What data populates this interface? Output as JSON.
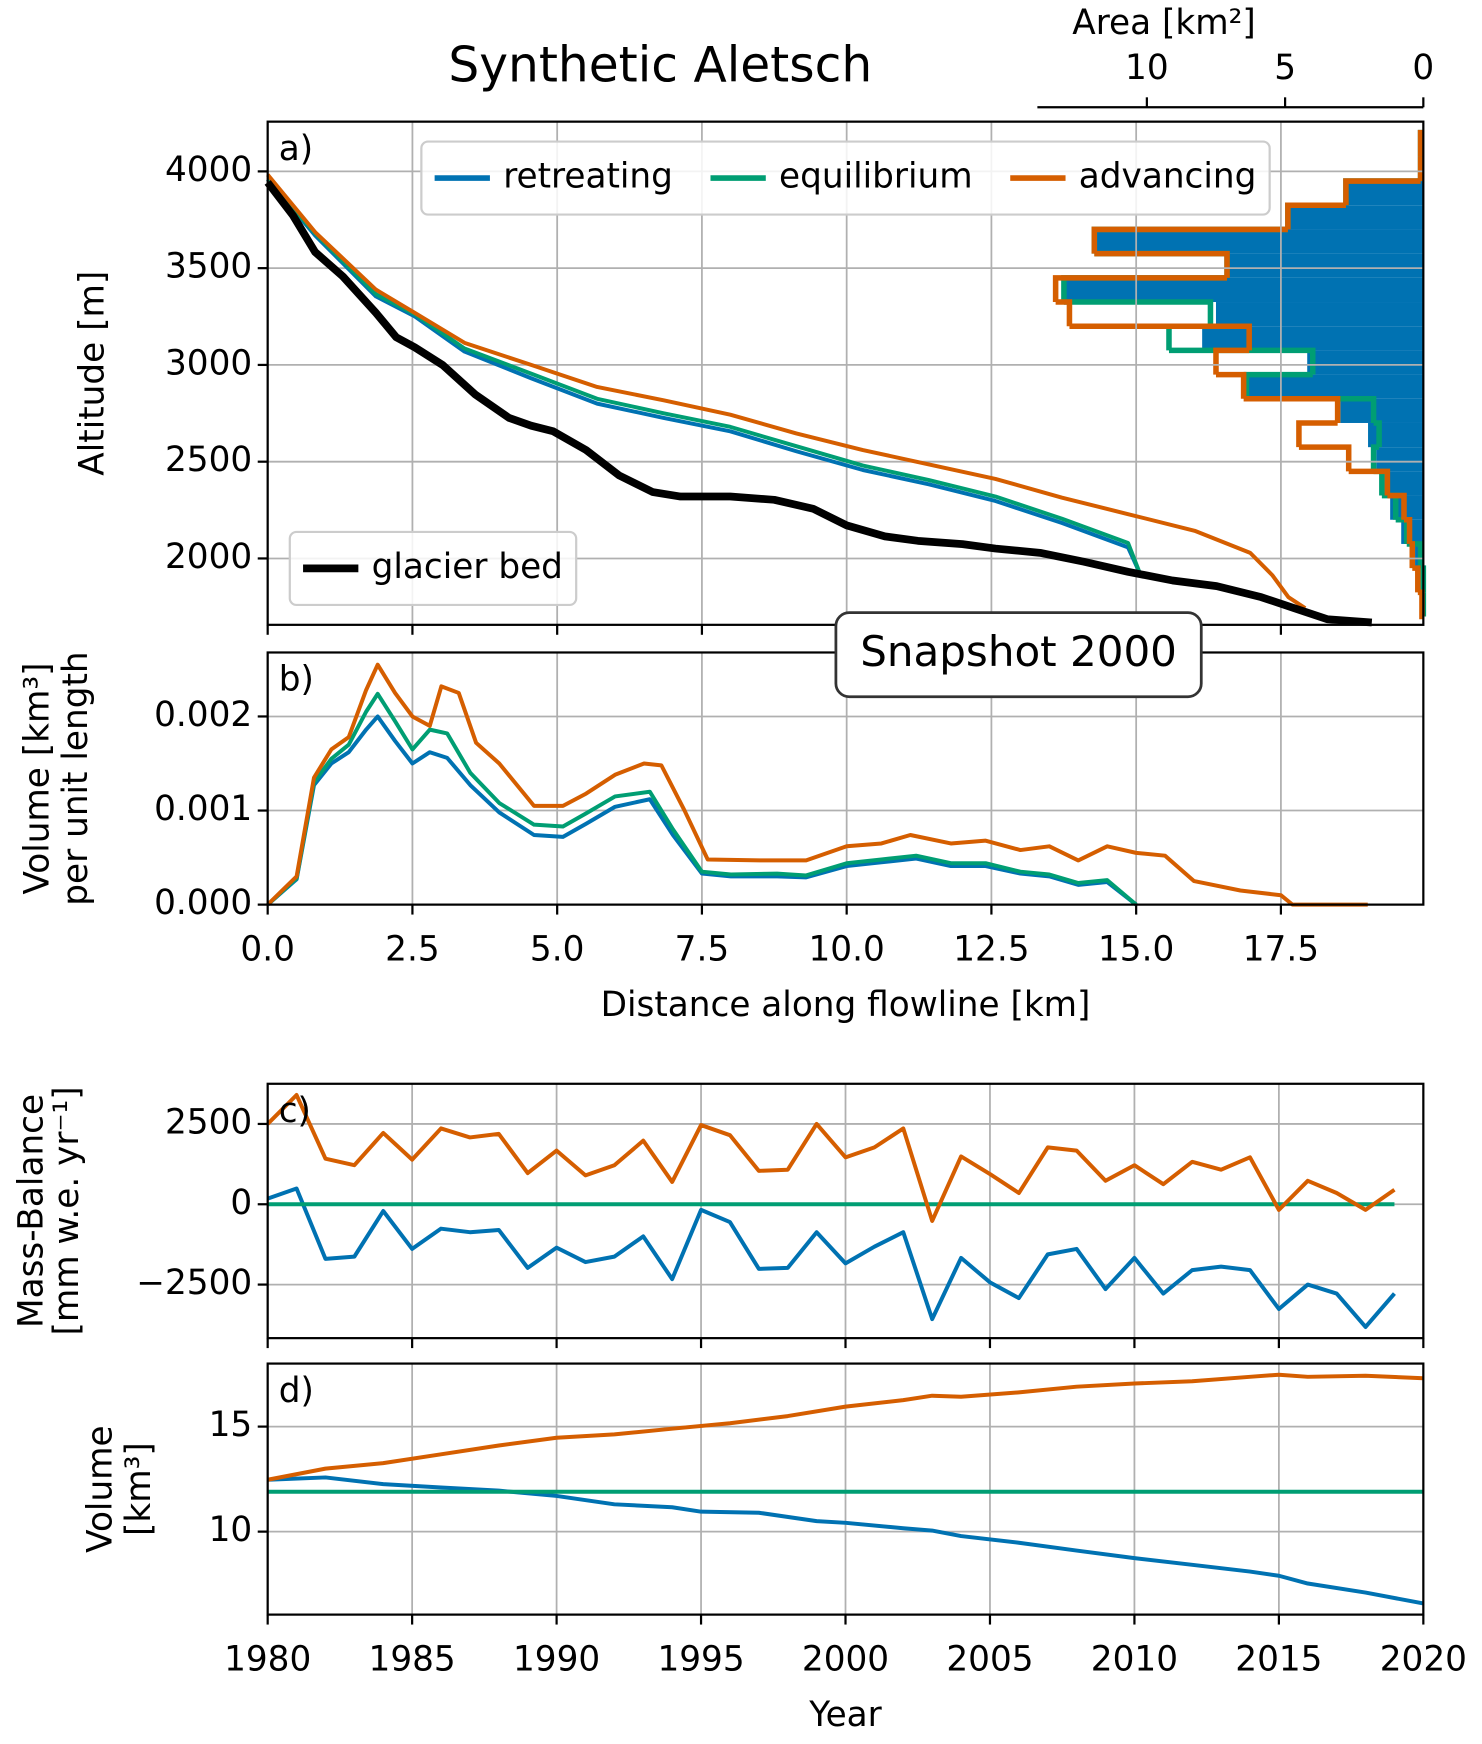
{
  "chart_data": [
    {
      "type": "line",
      "title": "Synthetic Aletsch",
      "panel_label": "a)",
      "ylabel": [
        "Altitude [m]"
      ],
      "xlim": [
        0,
        19.96
      ],
      "ylim": [
        1657,
        4257
      ],
      "xticks": [
        0,
        2.5,
        5,
        7.5,
        10,
        12.5,
        15,
        17.5
      ],
      "xtick_labels": false,
      "yticks": [
        2000,
        2500,
        3000,
        3500,
        4000
      ],
      "grid": true,
      "series": [
        {
          "name": "retreating",
          "color": "#0072b2",
          "legend": "upper center",
          "x": [
            0,
            0.82,
            1.87,
            2.54,
            3.4,
            4.55,
            5.69,
            6.84,
            7.99,
            9.13,
            10.28,
            11.42,
            12.57,
            13.72,
            14.86,
            15.06
          ],
          "values": [
            3960,
            3669,
            3354,
            3251,
            3069,
            2931,
            2800,
            2726,
            2657,
            2554,
            2457,
            2383,
            2297,
            2183,
            2057,
            1926
          ]
        },
        {
          "name": "equilibrium",
          "color": "#009e73",
          "legend": "upper center",
          "x": [
            0,
            0.82,
            1.87,
            2.54,
            3.4,
            4.55,
            5.69,
            6.84,
            7.99,
            9.13,
            10.28,
            11.42,
            12.57,
            13.72,
            14.86,
            15.06
          ],
          "values": [
            3960,
            3680,
            3365,
            3262,
            3085,
            2955,
            2825,
            2750,
            2680,
            2580,
            2480,
            2405,
            2320,
            2205,
            2080,
            1926
          ]
        },
        {
          "name": "advancing",
          "color": "#d55e00",
          "legend": "upper center",
          "x": [
            0,
            0.82,
            1.87,
            2.54,
            3.4,
            4.55,
            5.69,
            6.84,
            7.99,
            9.13,
            10.28,
            11.42,
            12.57,
            13.72,
            14.86,
            16.01,
            16.97,
            17.35,
            17.63,
            17.92
          ],
          "values": [
            3983,
            3686,
            3389,
            3269,
            3114,
            3000,
            2886,
            2817,
            2743,
            2646,
            2560,
            2486,
            2411,
            2314,
            2229,
            2143,
            2029,
            1914,
            1800,
            1743
          ]
        },
        {
          "name": "glacier bed",
          "color": "#000000",
          "legend": "lower left",
          "width": 7,
          "x": [
            0,
            0.44,
            0.82,
            1.3,
            1.87,
            2.22,
            2.54,
            3.02,
            3.59,
            4.17,
            4.55,
            4.93,
            5.5,
            6.07,
            6.65,
            7.13,
            7.99,
            8.75,
            9.42,
            10,
            10.66,
            11.23,
            12,
            12.57,
            13.34,
            14.1,
            14.86,
            15.63,
            16.39,
            17.16,
            17.73,
            18.3,
            19.07
          ],
          "values": [
            3943,
            3771,
            3583,
            3457,
            3269,
            3143,
            3091,
            3000,
            2846,
            2726,
            2686,
            2657,
            2560,
            2429,
            2343,
            2320,
            2320,
            2303,
            2257,
            2171,
            2114,
            2091,
            2074,
            2051,
            2029,
            1983,
            1931,
            1886,
            1857,
            1800,
            1743,
            1686,
            1669
          ]
        }
      ]
    },
    {
      "type": "histogram",
      "xlabel": "Area [km²]",
      "xlim": [
        13.96,
        0
      ],
      "xticks": [
        10,
        5,
        0
      ],
      "ylim": [
        1657,
        4257
      ],
      "bins": [
        1700,
        1825,
        1950,
        2075,
        2200,
        2325,
        2450,
        2575,
        2700,
        2825,
        2950,
        3075,
        3200,
        3325,
        3450,
        3575,
        3700,
        3825,
        3950,
        4075,
        4200
      ],
      "series": [
        {
          "color": "#0072b2",
          "filled": true,
          "values": [
            0,
            0,
            0.3,
            0.8,
            1.2,
            1.4,
            1.7,
            2.0,
            3.0,
            6.5,
            4.2,
            8.0,
            7.5,
            13.0,
            7.1,
            11.9,
            4.9,
            2.8,
            0.1,
            0.1
          ]
        },
        {
          "color": "#009e73",
          "filled": false,
          "values": [
            0,
            0,
            0.1,
            0.6,
            1.0,
            1.5,
            1.8,
            1.6,
            1.8,
            6.4,
            4.0,
            9.2,
            7.7,
            13.0,
            7.1,
            11.9,
            4.9,
            2.8,
            0.1,
            0.1
          ]
        },
        {
          "color": "#d55e00",
          "filled": false,
          "values": [
            0.05,
            0.2,
            0.4,
            0.5,
            0.7,
            1.3,
            2.7,
            4.5,
            3.1,
            6.5,
            7.5,
            6.3,
            12.8,
            13.3,
            7.1,
            11.9,
            4.9,
            2.8,
            0.1,
            0.1
          ]
        }
      ]
    },
    {
      "type": "line",
      "panel_label": "b)",
      "annotation": "Snapshot 2000",
      "ylabel": [
        "Volume [km³]",
        "per unit length"
      ],
      "xlabel": "Distance along flowline [km]",
      "xlim": [
        0,
        19.96
      ],
      "ylim": [
        0,
        0.00268
      ],
      "xticks": [
        {
          "value": 0,
          "label": "0.0"
        },
        {
          "value": 2.5,
          "label": "2.5"
        },
        {
          "value": 5,
          "label": "5.0"
        },
        {
          "value": 7.5,
          "label": "7.5"
        },
        {
          "value": 10,
          "label": "10.0"
        },
        {
          "value": 12.5,
          "label": "12.5"
        },
        {
          "value": 15,
          "label": "15.0"
        },
        {
          "value": 17.5,
          "label": "17.5"
        }
      ],
      "yticks": [
        {
          "value": 0,
          "label": "0.000"
        },
        {
          "value": 0.001,
          "label": "0.001"
        },
        {
          "value": 0.002,
          "label": "0.002"
        }
      ],
      "grid": true,
      "series": [
        {
          "color": "#0072b2",
          "x": [
            0,
            0.5,
            0.8,
            1.1,
            1.4,
            1.7,
            1.9,
            2.2,
            2.5,
            2.8,
            3.1,
            3.5,
            4.0,
            4.6,
            5.1,
            5.5,
            6.0,
            6.6,
            7.0,
            7.5,
            8.0,
            8.8,
            9.3,
            10,
            10.6,
            11.2,
            11.8,
            12.4,
            13,
            13.5,
            14,
            14.5,
            15
          ],
          "values": [
            0,
            0.00027,
            0.00127,
            0.0015,
            0.00162,
            0.00186,
            0.002,
            0.00174,
            0.0015,
            0.00162,
            0.00156,
            0.00127,
            0.00098,
            0.00074,
            0.00072,
            0.00086,
            0.00104,
            0.00112,
            0.00074,
            0.00033,
            0.0003,
            0.0003,
            0.00029,
            0.00041,
            0.00045,
            0.00049,
            0.00041,
            0.00041,
            0.00033,
            0.0003,
            0.00021,
            0.00024,
            0
          ]
        },
        {
          "color": "#009e73",
          "x": [
            0,
            0.5,
            0.8,
            1.1,
            1.4,
            1.7,
            1.9,
            2.2,
            2.5,
            2.8,
            3.1,
            3.5,
            4.0,
            4.6,
            5.1,
            5.5,
            6.0,
            6.6,
            7.0,
            7.5,
            8.0,
            8.8,
            9.3,
            10,
            10.6,
            11.2,
            11.8,
            12.4,
            13,
            13.5,
            14,
            14.5,
            15
          ],
          "values": [
            0,
            0.00028,
            0.0013,
            0.00155,
            0.0017,
            0.00205,
            0.00224,
            0.00195,
            0.00165,
            0.00186,
            0.00182,
            0.0014,
            0.00108,
            0.00085,
            0.00083,
            0.00097,
            0.00115,
            0.0012,
            0.0008,
            0.00035,
            0.00032,
            0.00033,
            0.00031,
            0.00044,
            0.00048,
            0.00052,
            0.00044,
            0.00044,
            0.00035,
            0.00032,
            0.00023,
            0.00026,
            0
          ]
        },
        {
          "color": "#d55e00",
          "x": [
            0,
            0.5,
            0.8,
            1.1,
            1.4,
            1.7,
            1.9,
            2.2,
            2.5,
            2.8,
            3.0,
            3.3,
            3.6,
            4.0,
            4.6,
            5.1,
            5.5,
            6.0,
            6.5,
            6.8,
            7.2,
            7.6,
            8.5,
            9.3,
            10,
            10.6,
            11.1,
            11.8,
            12.4,
            13,
            13.5,
            14,
            14.5,
            15,
            15.5,
            16,
            16.8,
            17.5,
            17.7,
            19
          ],
          "values": [
            0,
            0.0003,
            0.00135,
            0.00165,
            0.00178,
            0.00228,
            0.00255,
            0.00225,
            0.002,
            0.0019,
            0.00232,
            0.00225,
            0.00172,
            0.0015,
            0.00105,
            0.00105,
            0.00118,
            0.00138,
            0.0015,
            0.00148,
            0.001,
            0.00048,
            0.00047,
            0.00047,
            0.00062,
            0.00065,
            0.00074,
            0.00065,
            0.00068,
            0.00058,
            0.00062,
            0.00047,
            0.00062,
            0.00055,
            0.00052,
            0.00025,
            0.00015,
            0.0001,
            0,
            0
          ]
        }
      ]
    },
    {
      "type": "line",
      "panel_label": "c)",
      "ylabel": [
        "Mass-Balance",
        "[mm w.e. yr⁻¹]"
      ],
      "xlim": [
        1980,
        2020
      ],
      "ylim": [
        -4167,
        3750
      ],
      "xticks": [
        1980,
        1985,
        1990,
        1995,
        2000,
        2005,
        2010,
        2015,
        2020
      ],
      "xtick_labels": false,
      "yticks": [
        {
          "value": -2500,
          "label": "−2500"
        },
        0,
        2500
      ],
      "grid": true,
      "x": [
        1980,
        1981,
        1982,
        1983,
        1984,
        1985,
        1986,
        1987,
        1988,
        1989,
        1990,
        1991,
        1992,
        1993,
        1994,
        1995,
        1996,
        1997,
        1998,
        1999,
        2000,
        2001,
        2002,
        2003,
        2004,
        2005,
        2006,
        2007,
        2008,
        2009,
        2010,
        2011,
        2012,
        2013,
        2014,
        2015,
        2016,
        2017,
        2018,
        2019
      ],
      "series": [
        {
          "color": "#0072b2",
          "values": [
            175,
            490,
            -1700,
            -1630,
            -210,
            -1390,
            -760,
            -870,
            -800,
            -1980,
            -1350,
            -1800,
            -1630,
            -1000,
            -2330,
            -175,
            -555,
            -2010,
            -1980,
            -870,
            -1840,
            -1320,
            -870,
            -3575,
            -1670,
            -2430,
            -2920,
            -1560,
            -1390,
            -2640,
            -1670,
            -2780,
            -2050,
            -1940,
            -2050,
            -3260,
            -2500,
            -2780,
            -3820,
            -2780
          ]
        },
        {
          "color": "#009e73",
          "values": [
            0,
            0,
            0,
            0,
            0,
            0,
            0,
            0,
            0,
            0,
            0,
            0,
            0,
            0,
            0,
            0,
            0,
            0,
            0,
            0,
            0,
            0,
            0,
            0,
            0,
            0,
            0,
            0,
            0,
            0,
            0,
            0,
            0,
            0,
            0,
            0,
            0,
            0,
            0,
            0
          ]
        },
        {
          "color": "#d55e00",
          "values": [
            2500,
            3400,
            1420,
            1215,
            2220,
            1390,
            2360,
            2080,
            2190,
            970,
            1670,
            900,
            1215,
            1980,
            695,
            2465,
            2150,
            1040,
            1075,
            2500,
            1460,
            1770,
            2360,
            -520,
            1490,
            940,
            350,
            1770,
            1670,
            730,
            1215,
            625,
            1320,
            1075,
            1460,
            -175,
            730,
            350,
            -175,
            450
          ]
        }
      ]
    },
    {
      "type": "line",
      "panel_label": "d)",
      "ylabel": [
        "Volume",
        "[km³]"
      ],
      "xlabel": "Year",
      "xlim": [
        1980,
        2020
      ],
      "ylim": [
        6.05,
        18
      ],
      "xticks": [
        1980,
        1985,
        1990,
        1995,
        2000,
        2005,
        2010,
        2015,
        2020
      ],
      "yticks": [
        10,
        15
      ],
      "grid": true,
      "series": [
        {
          "color": "#0072b2",
          "x": [
            1980,
            1982,
            1984,
            1986,
            1988,
            1990,
            1992,
            1994,
            1995,
            1997,
            1999,
            2000,
            2002,
            2003,
            2004,
            2006,
            2008,
            2010,
            2012,
            2014,
            2015,
            2016,
            2018,
            2020
          ],
          "values": [
            12.47,
            12.58,
            12.26,
            12.1,
            11.95,
            11.7,
            11.3,
            11.16,
            10.95,
            10.9,
            10.5,
            10.42,
            10.16,
            10.05,
            9.79,
            9.47,
            9.1,
            8.74,
            8.42,
            8.1,
            7.9,
            7.53,
            7.1,
            6.58
          ]
        },
        {
          "color": "#009e73",
          "x": [
            1980,
            2020
          ],
          "values": [
            11.9,
            11.9
          ]
        },
        {
          "color": "#d55e00",
          "x": [
            1980,
            1982,
            1984,
            1986,
            1988,
            1990,
            1992,
            1994,
            1996,
            1998,
            2000,
            2002,
            2003,
            2004,
            2006,
            2008,
            2010,
            2012,
            2014,
            2015,
            2016,
            2018,
            2020
          ],
          "values": [
            12.47,
            13.0,
            13.26,
            13.68,
            14.1,
            14.47,
            14.63,
            14.9,
            15.16,
            15.5,
            15.95,
            16.26,
            16.47,
            16.42,
            16.63,
            16.9,
            17.05,
            17.16,
            17.37,
            17.47,
            17.37,
            17.42,
            17.3
          ]
        }
      ]
    }
  ]
}
